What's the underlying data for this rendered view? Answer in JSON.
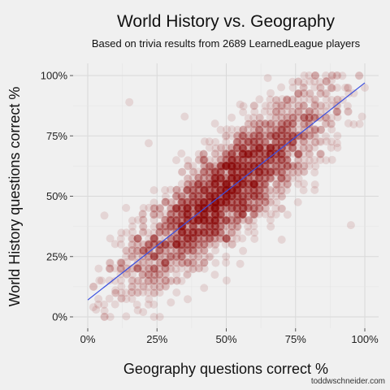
{
  "chart_data": {
    "type": "scatter",
    "title": "World History vs. Geography",
    "subtitle": "Based on trivia results from 2689 LearnedLeague players",
    "xlabel": "Geography questions correct %",
    "ylabel": "World History questions correct %",
    "xlim": [
      0,
      1
    ],
    "ylim": [
      0,
      1
    ],
    "x_ticks": [
      "0%",
      "25%",
      "50%",
      "75%",
      "100%"
    ],
    "y_ticks": [
      "0%",
      "25%",
      "50%",
      "75%",
      "100%"
    ],
    "point_color": "#8b0000",
    "trend_color": "#3a4fe0",
    "grid": true,
    "n_points": 2689,
    "trend_line": {
      "x": [
        0,
        1
      ],
      "y": [
        0.07,
        0.97
      ]
    },
    "points_sample": [
      [
        0.15,
        0.89
      ],
      [
        0.65,
        0.99
      ],
      [
        0.95,
        0.38
      ],
      [
        0.03,
        0.03
      ],
      [
        0.02,
        0.04
      ],
      [
        0.06,
        0.42
      ],
      [
        0.22,
        0.72
      ],
      [
        0.35,
        0.83
      ],
      [
        0.55,
        0.88
      ],
      [
        0.78,
        0.97
      ],
      [
        0.88,
        0.98
      ],
      [
        0.93,
        0.95
      ],
      [
        0.99,
        0.83
      ],
      [
        0.9,
        0.72
      ],
      [
        0.7,
        0.32
      ],
      [
        0.55,
        0.22
      ],
      [
        0.42,
        0.12
      ],
      [
        0.3,
        0.06
      ],
      [
        0.2,
        0.02
      ],
      [
        0.1,
        0.11
      ],
      [
        0.25,
        0.25
      ],
      [
        0.4,
        0.45
      ],
      [
        0.5,
        0.5
      ],
      [
        0.6,
        0.6
      ],
      [
        0.75,
        0.75
      ],
      [
        0.05,
        0.15
      ],
      [
        0.12,
        0.3
      ],
      [
        0.18,
        0.2
      ],
      [
        0.45,
        0.62
      ],
      [
        0.82,
        0.88
      ]
    ]
  },
  "credit": "toddwschneider.com"
}
